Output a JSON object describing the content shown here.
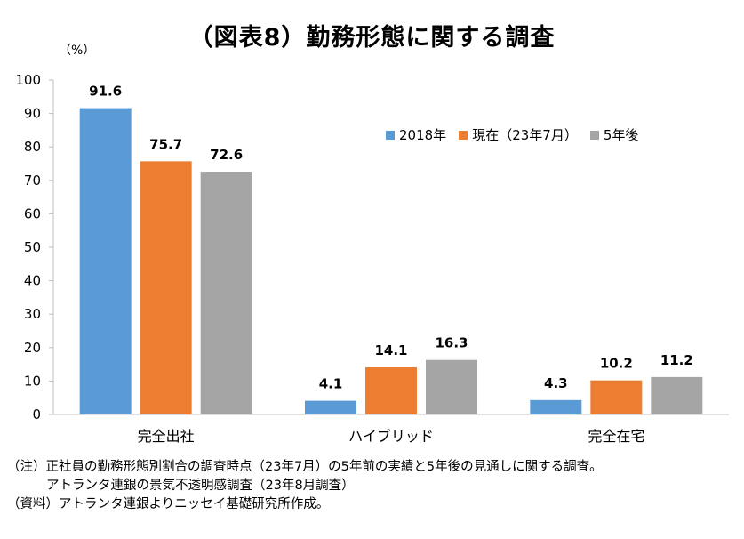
{
  "title": "（図表8）勤務形態に関する調査",
  "unit": "（%）",
  "chart_data": {
    "type": "bar",
    "categories": [
      "完全出社",
      "ハイブリッド",
      "完全在宅"
    ],
    "series": [
      {
        "name": "2018年",
        "values": [
          91.6,
          4.1,
          4.3
        ],
        "color": "#5B9BD5"
      },
      {
        "name": "現在（23年7月）",
        "values": [
          75.7,
          14.1,
          10.2
        ],
        "color": "#ED7D31"
      },
      {
        "name": "5年後",
        "values": [
          72.6,
          16.3,
          11.2
        ],
        "color": "#A5A5A5"
      }
    ],
    "ylim": [
      0,
      100
    ],
    "yticks": [
      0,
      10,
      20,
      30,
      40,
      50,
      60,
      70,
      80,
      90,
      100
    ],
    "grid": false,
    "legend": "top-right"
  },
  "notes": [
    "（注）正社員の勤務形態別割合の調査時点（23年7月）の5年前の実績と5年後の見通しに関する調査。",
    "アトランタ連銀の景気不透明感調査（23年8月調査）",
    "（資料）アトランタ連銀よりニッセイ基礎研究所作成。"
  ]
}
